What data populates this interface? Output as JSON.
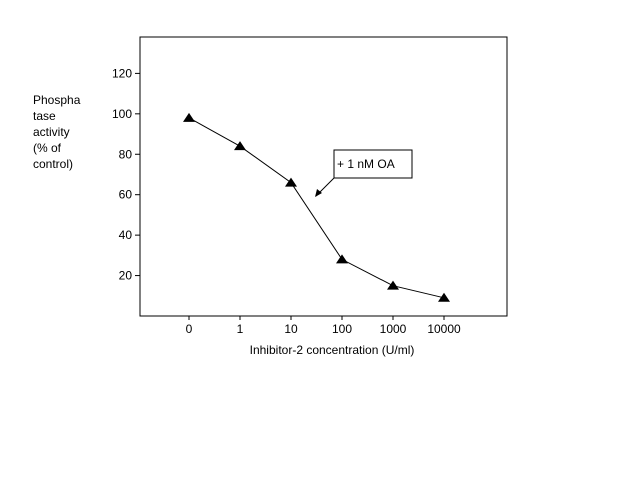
{
  "chart_data": {
    "type": "line",
    "title": "",
    "xlabel": "Inhibitor-2 concentration (U/ml)",
    "ylabel_lines": [
      "Phospha",
      " tase",
      "activity",
      "(% of",
      "  control)"
    ],
    "categories": [
      "0",
      "1",
      "10",
      "100",
      "1000",
      "10000"
    ],
    "values": [
      98,
      84,
      66,
      28,
      15,
      9
    ],
    "ylim": [
      0,
      138
    ],
    "yticks": [
      20,
      40,
      60,
      80,
      100,
      120
    ],
    "grid": false,
    "marker": "triangle",
    "annotation": {
      "text": "+ 1 nM OA",
      "points_to_category": 2.5,
      "points_to_value": 60
    }
  }
}
